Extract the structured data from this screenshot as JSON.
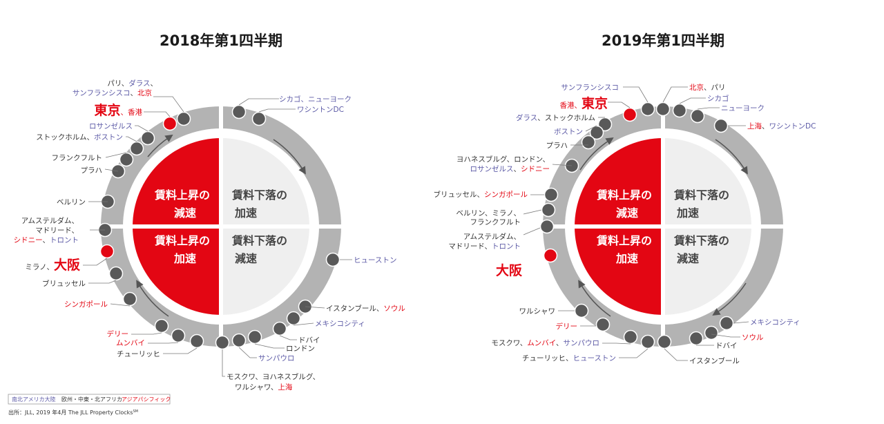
{
  "colors": {
    "americas": "#5c5aa6",
    "emea": "#333333",
    "asia": "#e30613",
    "ring": "#b3b3b3",
    "dot": "#595959",
    "quadrant_red": "#e30613",
    "quadrant_light": "#efefef",
    "quadrant_text_dark": "#444444"
  },
  "quadrants": {
    "tl": [
      "賃料上昇の",
      "減速"
    ],
    "tr": [
      "賃料下落の",
      "加速"
    ],
    "bl": [
      "賃料上昇の",
      "加速"
    ],
    "br": [
      "賃料下落の",
      "減速"
    ]
  },
  "panels": [
    {
      "title": "2018年第1四半期",
      "labels": [
        {
          "segs": [
            [
              "パリ、",
              "emea"
            ],
            [
              "ダラス",
              "americas"
            ],
            [
              "、",
              "emea"
            ]
          ]
        },
        {
          "segs": [
            [
              "サンフランシスコ",
              "americas"
            ],
            [
              "、",
              "emea"
            ],
            [
              "北京",
              "asia"
            ]
          ]
        },
        {
          "segs": [
            [
              "東京",
              "asia",
              "big"
            ],
            [
              "、香港",
              "asia"
            ]
          ]
        },
        {
          "segs": [
            [
              "ロサンゼルス",
              "americas"
            ]
          ]
        },
        {
          "segs": [
            [
              "ストックホルム、",
              "emea"
            ],
            [
              "ボストン",
              "americas"
            ]
          ]
        },
        {
          "segs": [
            [
              "フランクフルト",
              "emea"
            ]
          ]
        },
        {
          "segs": [
            [
              "プラハ",
              "emea"
            ]
          ]
        },
        {
          "segs": [
            [
              "ベルリン",
              "emea"
            ]
          ]
        },
        {
          "segs": [
            [
              "アムステルダム、",
              "emea"
            ]
          ]
        },
        {
          "segs": [
            [
              "マドリード、",
              "emea"
            ]
          ]
        },
        {
          "segs": [
            [
              "シドニー",
              "asia"
            ],
            [
              "、",
              "emea"
            ],
            [
              "トロント",
              "americas"
            ]
          ]
        },
        {
          "segs": [
            [
              "ミラノ、",
              "emea"
            ],
            [
              "大阪",
              "asia",
              "big"
            ]
          ]
        },
        {
          "segs": [
            [
              "ブリュッセル",
              "emea"
            ]
          ]
        },
        {
          "segs": [
            [
              "シンガポール",
              "asia"
            ]
          ]
        },
        {
          "segs": [
            [
              "デリー",
              "asia"
            ]
          ]
        },
        {
          "segs": [
            [
              "ムンバイ",
              "asia"
            ]
          ]
        },
        {
          "segs": [
            [
              "チューリッヒ",
              "emea"
            ]
          ]
        },
        {
          "segs": [
            [
              "シカゴ、",
              "americas"
            ],
            [
              "ニューヨーク",
              "americas"
            ]
          ]
        },
        {
          "segs": [
            [
              "ワシントンDC",
              "americas"
            ]
          ]
        },
        {
          "segs": [
            [
              "ヒューストン",
              "americas"
            ]
          ]
        },
        {
          "segs": [
            [
              "イスタンブール、",
              "emea"
            ],
            [
              "ソウル",
              "asia"
            ]
          ]
        },
        {
          "segs": [
            [
              "メキシコシティ",
              "americas"
            ]
          ]
        },
        {
          "segs": [
            [
              "ドバイ",
              "emea"
            ]
          ]
        },
        {
          "segs": [
            [
              "ロンドン",
              "emea"
            ]
          ]
        },
        {
          "segs": [
            [
              "サンパウロ",
              "americas"
            ]
          ]
        },
        {
          "segs": [
            [
              "モスクワ、ヨハネスブルグ、",
              "emea"
            ]
          ]
        },
        {
          "segs": [
            [
              "ワルシャワ、",
              "emea"
            ],
            [
              "上海",
              "asia"
            ]
          ]
        }
      ]
    },
    {
      "title": "2019年第1四半期",
      "labels": [
        {
          "segs": [
            [
              "サンフランシスコ",
              "americas"
            ]
          ]
        },
        {
          "segs": [
            [
              "香港、",
              "asia"
            ],
            [
              "東京",
              "asia",
              "big"
            ]
          ]
        },
        {
          "segs": [
            [
              "ダラス",
              "americas"
            ],
            [
              "、ストックホルム",
              "emea"
            ]
          ]
        },
        {
          "segs": [
            [
              "ボストン",
              "americas"
            ]
          ]
        },
        {
          "segs": [
            [
              "プラハ",
              "emea"
            ]
          ]
        },
        {
          "segs": [
            [
              "ヨハネスブルグ、ロンドン、",
              "emea"
            ]
          ]
        },
        {
          "segs": [
            [
              "ロサンゼルス",
              "americas"
            ],
            [
              "、",
              "emea"
            ],
            [
              "シドニー",
              "asia"
            ]
          ]
        },
        {
          "segs": [
            [
              "ブリュッセル、",
              "emea"
            ],
            [
              "シンガポール",
              "asia"
            ]
          ]
        },
        {
          "segs": [
            [
              "ベルリン、ミラノ、",
              "emea"
            ]
          ]
        },
        {
          "segs": [
            [
              "フランクフルト",
              "emea"
            ]
          ]
        },
        {
          "segs": [
            [
              "アムステルダム、",
              "emea"
            ]
          ]
        },
        {
          "segs": [
            [
              "マドリード、",
              "emea"
            ],
            [
              "トロント",
              "americas"
            ]
          ]
        },
        {
          "segs": [
            [
              "大阪",
              "asia",
              "big"
            ]
          ]
        },
        {
          "segs": [
            [
              "ワルシャワ",
              "emea"
            ]
          ]
        },
        {
          "segs": [
            [
              "デリー",
              "asia"
            ]
          ]
        },
        {
          "segs": [
            [
              "モスクワ、",
              "emea"
            ],
            [
              "ムンバイ",
              "asia"
            ],
            [
              "、",
              "emea"
            ],
            [
              "サンパウロ",
              "americas"
            ]
          ]
        },
        {
          "segs": [
            [
              "チューリッヒ、",
              "emea"
            ],
            [
              "ヒューストン",
              "americas"
            ]
          ]
        },
        {
          "segs": [
            [
              "北京",
              "asia"
            ],
            [
              "、パリ",
              "emea"
            ]
          ]
        },
        {
          "segs": [
            [
              "シカゴ",
              "americas"
            ]
          ]
        },
        {
          "segs": [
            [
              "ニューヨーク",
              "americas"
            ]
          ]
        },
        {
          "segs": [
            [
              "上海",
              "asia"
            ],
            [
              "、",
              "emea"
            ],
            [
              "ワシントンDC",
              "americas"
            ]
          ]
        },
        {
          "segs": [
            [
              "メキシコシティ",
              "americas"
            ]
          ]
        },
        {
          "segs": [
            [
              "ソウル",
              "asia"
            ]
          ]
        },
        {
          "segs": [
            [
              "ドバイ",
              "emea"
            ]
          ]
        },
        {
          "segs": [
            [
              "イスタンブール",
              "emea"
            ]
          ]
        }
      ]
    }
  ],
  "legend": {
    "americas": "南北アメリカ大陸",
    "emea": "欧州・中東・北アフリカ",
    "asia": "アジアパシフィック"
  },
  "source": "出所：JLL, 2019 年4月  The JLL Property Clocks",
  "source_mark": "SM"
}
